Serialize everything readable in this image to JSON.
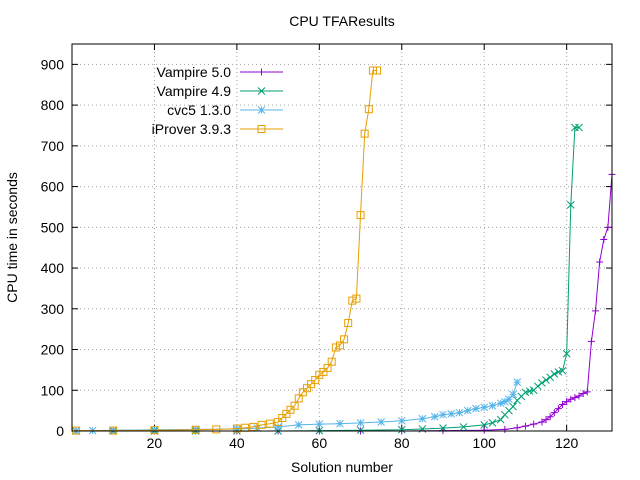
{
  "chart_data": {
    "type": "line",
    "title": "CPU TFAResults",
    "xlabel": "Solution number",
    "ylabel": "CPU time in seconds",
    "xlim": [
      0,
      131
    ],
    "ylim": [
      0,
      950
    ],
    "xticks": [
      20,
      40,
      60,
      80,
      100,
      120
    ],
    "yticks": [
      0,
      100,
      200,
      300,
      400,
      500,
      600,
      700,
      800,
      900
    ],
    "grid": true,
    "legend_position": "top-left",
    "series": [
      {
        "name": "Vampire 5.0",
        "color": "#9400d3",
        "marker": "plus",
        "x": [
          1,
          10,
          20,
          30,
          40,
          50,
          60,
          70,
          80,
          90,
          100,
          105,
          108,
          110,
          112,
          114,
          115,
          116,
          117,
          118,
          119,
          120,
          121,
          122,
          123,
          124,
          125,
          126,
          127,
          128,
          129,
          130,
          131
        ],
        "values": [
          0,
          0,
          0,
          0,
          0,
          0,
          0,
          0,
          0,
          1,
          2,
          4,
          8,
          12,
          17,
          22,
          28,
          35,
          45,
          55,
          65,
          72,
          78,
          82,
          86,
          92,
          96,
          220,
          295,
          415,
          470,
          500,
          630
        ]
      },
      {
        "name": "Vampire 4.9",
        "color": "#009e73",
        "marker": "x",
        "x": [
          1,
          10,
          20,
          30,
          40,
          50,
          60,
          70,
          80,
          85,
          90,
          95,
          100,
          102,
          104,
          105,
          106,
          107,
          108,
          109,
          110,
          111,
          112,
          113,
          114,
          115,
          116,
          117,
          118,
          119,
          120,
          121,
          122,
          123
        ],
        "values": [
          0,
          0,
          0,
          0,
          0,
          0,
          1,
          2,
          3,
          5,
          7,
          10,
          15,
          20,
          28,
          40,
          50,
          60,
          75,
          85,
          95,
          98,
          100,
          110,
          118,
          125,
          132,
          140,
          145,
          148,
          190,
          555,
          745,
          745
        ]
      },
      {
        "name": "cvc5 1.3.0",
        "color": "#56b4e9",
        "marker": "star",
        "x": [
          1,
          5,
          10,
          20,
          30,
          40,
          45,
          50,
          55,
          60,
          65,
          70,
          75,
          80,
          85,
          88,
          90,
          92,
          94,
          96,
          98,
          100,
          102,
          104,
          105,
          106,
          107,
          108
        ],
        "values": [
          0,
          1,
          2,
          3,
          4,
          5,
          7,
          10,
          15,
          17,
          18,
          20,
          22,
          25,
          30,
          35,
          40,
          42,
          45,
          50,
          55,
          58,
          62,
          68,
          72,
          78,
          90,
          120
        ]
      },
      {
        "name": "iProver 3.9.3",
        "color": "#e69f00",
        "marker": "square",
        "x": [
          1,
          10,
          20,
          30,
          35,
          40,
          42,
          44,
          46,
          48,
          50,
          51,
          52,
          53,
          54,
          55,
          56,
          57,
          58,
          59,
          60,
          61,
          62,
          63,
          64,
          65,
          66,
          67,
          68,
          69,
          70,
          71,
          72,
          73,
          74
        ],
        "values": [
          1,
          1,
          2,
          3,
          4,
          6,
          8,
          10,
          15,
          18,
          22,
          32,
          42,
          52,
          62,
          80,
          95,
          105,
          115,
          125,
          138,
          145,
          155,
          170,
          205,
          210,
          225,
          265,
          320,
          325,
          530,
          730,
          790,
          885,
          885
        ]
      }
    ]
  }
}
